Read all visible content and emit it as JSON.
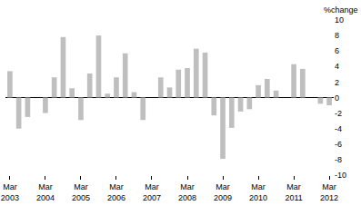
{
  "chart_data": {
    "type": "bar",
    "y_label": "%change",
    "categories": [
      "Mar 2003",
      null,
      null,
      null,
      "Mar 2004",
      null,
      null,
      null,
      "Mar 2005",
      null,
      null,
      null,
      "Mar 2006",
      null,
      null,
      null,
      "Mar 2007",
      null,
      null,
      null,
      "Mar 2008",
      null,
      null,
      null,
      "Mar 2009",
      null,
      null,
      null,
      "Mar 2010",
      null,
      null,
      null,
      "Mar 2011",
      null,
      null,
      null,
      "Mar 2012"
    ],
    "values": [
      3.4,
      -4.0,
      -2.5,
      0,
      -2.0,
      2.6,
      7.8,
      1.2,
      -2.9,
      3.1,
      8.0,
      0.5,
      2.6,
      5.7,
      0.7,
      -2.9,
      0,
      2.6,
      1.3,
      3.6,
      3.8,
      6.3,
      5.8,
      -2.3,
      -7.9,
      -3.9,
      -1.8,
      -1.5,
      1.6,
      2.4,
      0.9,
      0,
      4.3,
      3.7,
      0,
      -0.8,
      -1.0
    ],
    "color": "#bfbfbf",
    "ylim": [
      -10,
      10
    ],
    "yticks": [
      -10,
      -8,
      -6,
      -4,
      -2,
      0,
      2,
      4,
      6,
      8,
      10
    ],
    "grid": false
  }
}
